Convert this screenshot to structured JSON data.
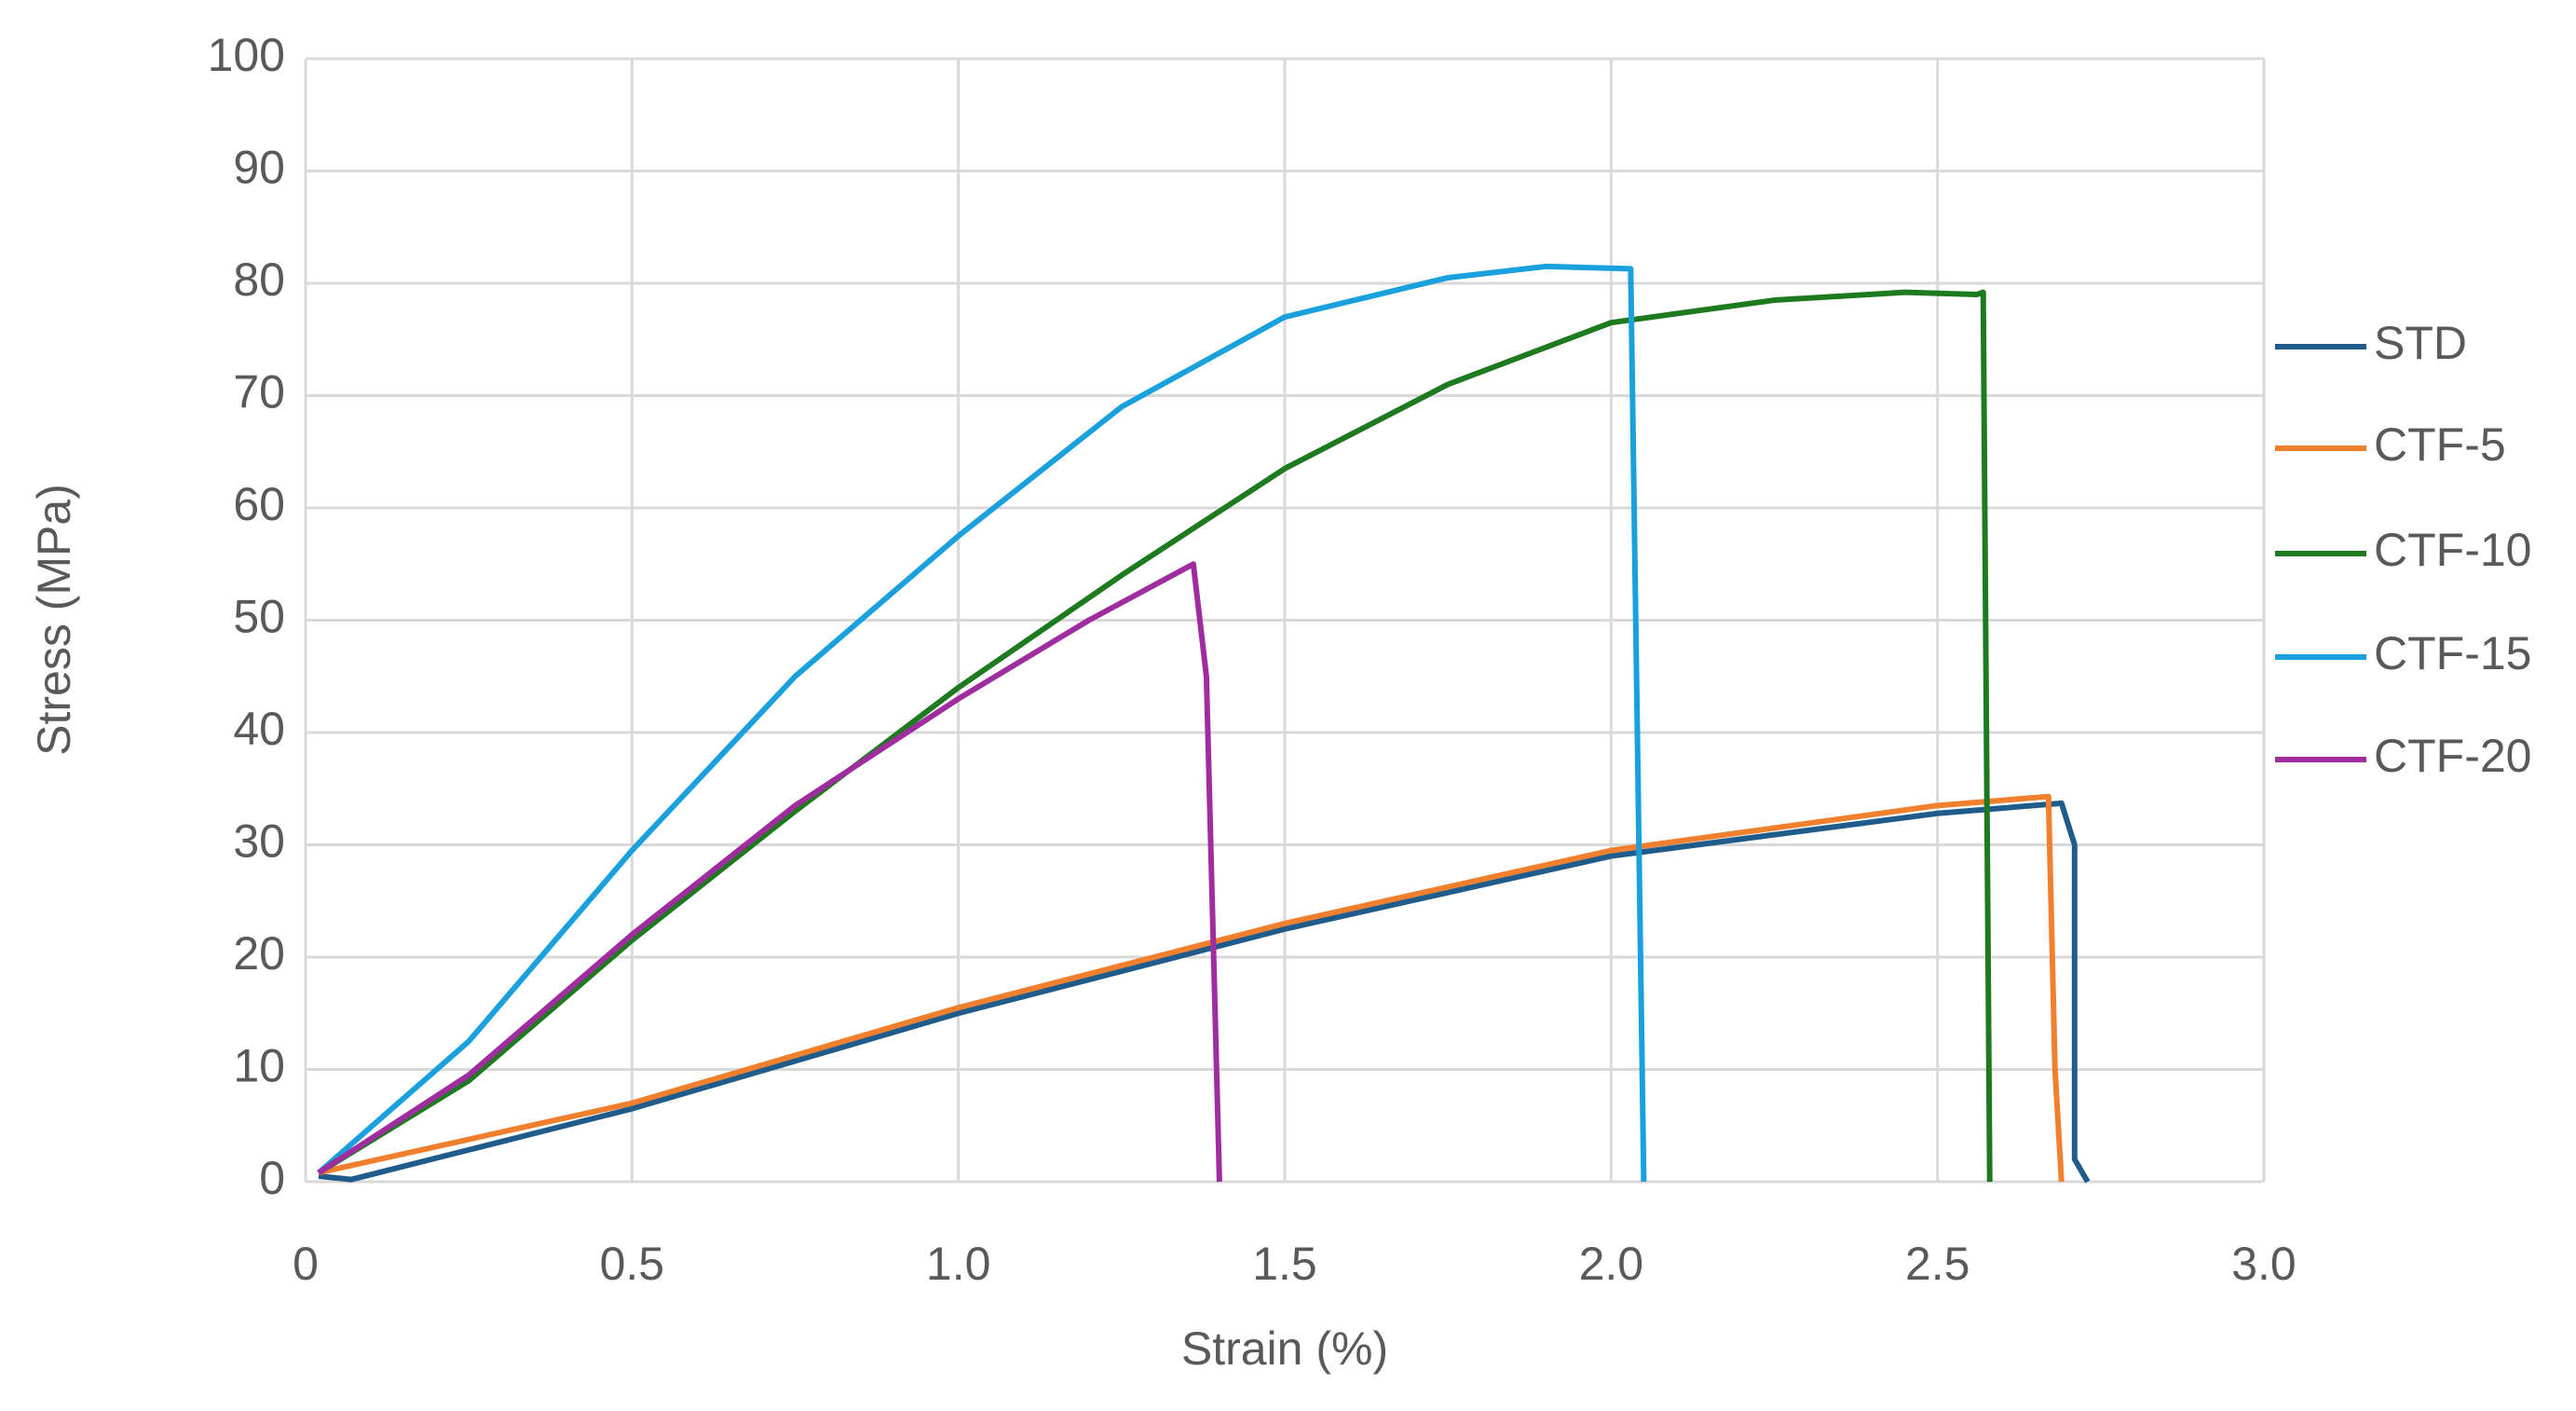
{
  "chart_data": {
    "type": "line",
    "x_label": "Strain (%)",
    "y_label": "Stress (MPa)",
    "xlim": [
      0,
      3
    ],
    "ylim": [
      0,
      100
    ],
    "xticks": [
      0,
      0.5,
      {
        "value": 1,
        "label": "1.0"
      },
      1.5,
      {
        "value": 2,
        "label": "2.0"
      },
      2.5,
      {
        "value": 3,
        "label": "3.0"
      }
    ],
    "yticks": [
      0,
      10,
      20,
      30,
      40,
      50,
      60,
      70,
      80,
      90,
      100
    ],
    "grid": true,
    "legend": "right",
    "series": [
      {
        "name": "STD",
        "color": "#1f5c8b",
        "x": [
          0.02,
          0.07,
          0.5,
          1.0,
          1.5,
          2.0,
          2.5,
          2.69,
          2.71,
          2.71,
          2.73
        ],
        "values": [
          0.5,
          0.2,
          6.5,
          15,
          22.5,
          29,
          32.8,
          33.7,
          30,
          2,
          0
        ]
      },
      {
        "name": "CTF-5",
        "color": "#f07f2e",
        "x": [
          0.02,
          0.5,
          1.0,
          1.5,
          2.0,
          2.5,
          2.67,
          2.68,
          2.69
        ],
        "values": [
          0.8,
          7,
          15.5,
          23,
          29.5,
          33.5,
          34.3,
          10,
          0
        ]
      },
      {
        "name": "CTF-10",
        "color": "#1e7a1e",
        "x": [
          0.02,
          0.25,
          0.5,
          0.75,
          1.0,
          1.25,
          1.5,
          1.75,
          2.0,
          2.25,
          2.45,
          2.56,
          2.57,
          2.58
        ],
        "values": [
          0.8,
          9,
          21.5,
          33,
          44,
          54,
          63.5,
          71,
          76.5,
          78.5,
          79.2,
          79,
          79.2,
          0
        ]
      },
      {
        "name": "CTF-15",
        "color": "#1aa0dc",
        "x": [
          0.02,
          0.25,
          0.5,
          0.75,
          1.0,
          1.25,
          1.5,
          1.75,
          1.9,
          2.03,
          2.05
        ],
        "values": [
          0.8,
          12.5,
          29.5,
          45,
          57.5,
          69,
          77,
          80.5,
          81.5,
          81.3,
          0
        ]
      },
      {
        "name": "CTF-20",
        "color": "#a02da0",
        "x": [
          0.02,
          0.25,
          0.5,
          0.75,
          1.0,
          1.2,
          1.36,
          1.38,
          1.4
        ],
        "values": [
          0.8,
          9.5,
          22,
          33.5,
          43,
          50,
          55,
          45,
          0
        ]
      }
    ]
  }
}
